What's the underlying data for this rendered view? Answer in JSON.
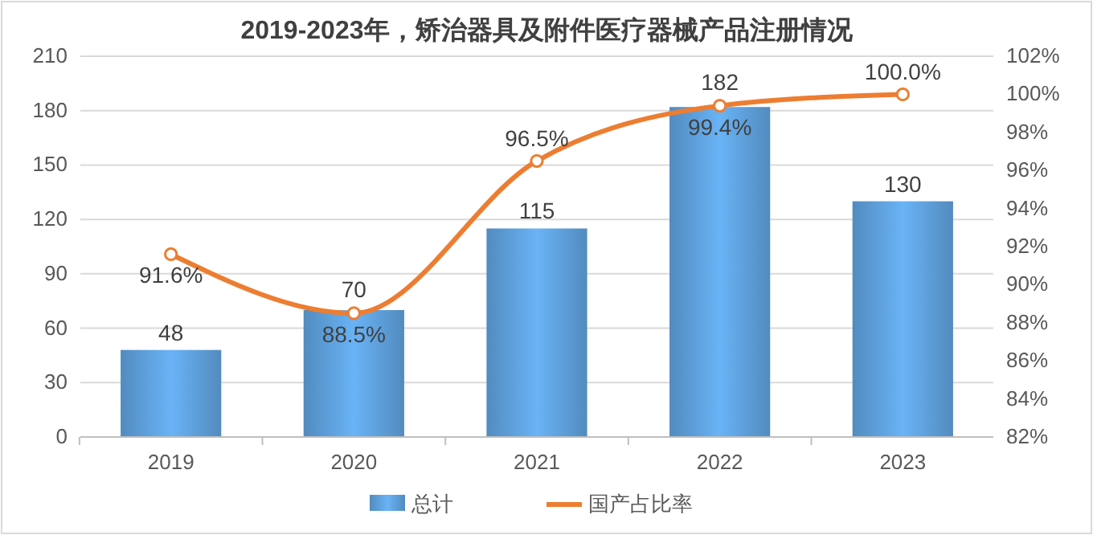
{
  "chart_data": {
    "type": "bar",
    "title": "2019-2023年，矫治器具及附件医疗器械产品注册情况",
    "categories": [
      "2019",
      "2020",
      "2021",
      "2022",
      "2023"
    ],
    "series": [
      {
        "name": "总计",
        "color": "#5b9bd5",
        "values": [
          48,
          70,
          115,
          182,
          130
        ],
        "value_labels": [
          "48",
          "70",
          "115",
          "182",
          "130"
        ]
      },
      {
        "name": "国产占比率",
        "type": "line",
        "axis": "y2",
        "color": "#ed7d31",
        "values": [
          91.6,
          88.5,
          96.5,
          99.4,
          100.0
        ],
        "value_labels": [
          "91.6%",
          "88.5%",
          "96.5%",
          "99.4%",
          "100.0%"
        ]
      }
    ],
    "ylim": [
      0,
      210
    ],
    "yticks": [
      0,
      30,
      60,
      90,
      120,
      150,
      180,
      210
    ],
    "y2lim": [
      82,
      102
    ],
    "y2ticks": [
      {
        "value": 82,
        "label": "82%"
      },
      {
        "value": 84,
        "label": "84%"
      },
      {
        "value": 86,
        "label": "86%"
      },
      {
        "value": 88,
        "label": "88%"
      },
      {
        "value": 90,
        "label": "90%"
      },
      {
        "value": 92,
        "label": "92%"
      },
      {
        "value": 94,
        "label": "94%"
      },
      {
        "value": 96,
        "label": "96%"
      },
      {
        "value": 98,
        "label": "98%"
      },
      {
        "value": 100,
        "label": "100%"
      },
      {
        "value": 102,
        "label": "102%"
      }
    ],
    "grid": "y",
    "legend": "bottom",
    "marker": "circle",
    "line_style": "solid"
  }
}
